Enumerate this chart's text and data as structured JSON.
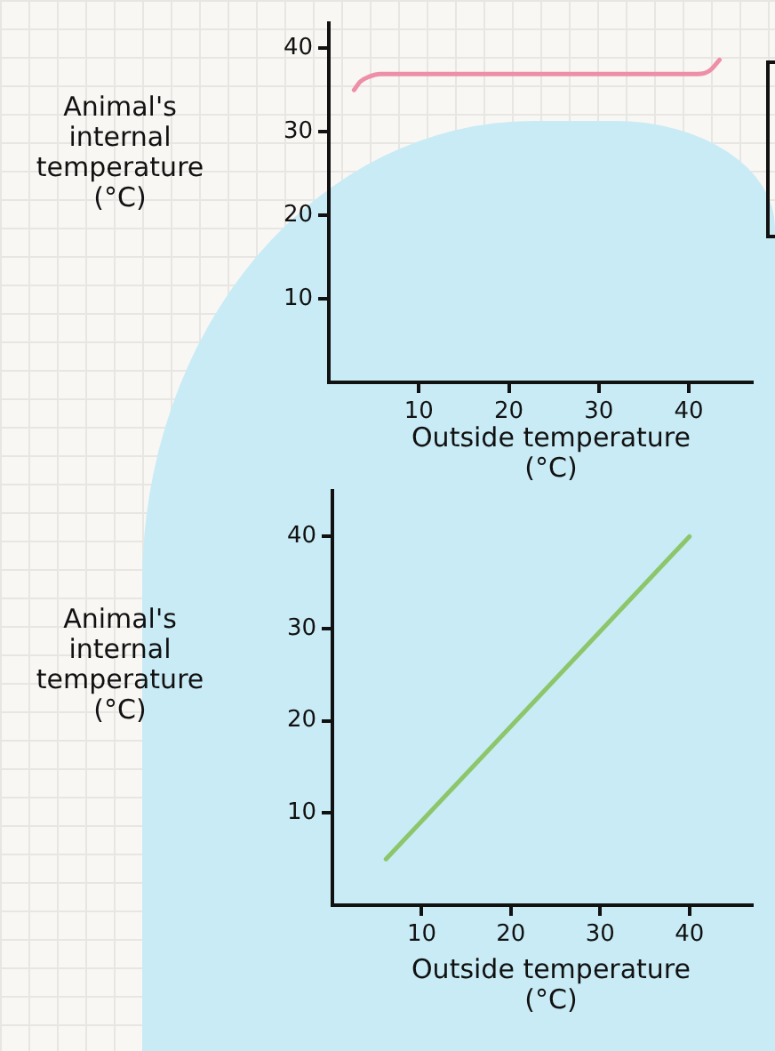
{
  "chart_data": [
    {
      "type": "line",
      "x": [
        2.8,
        3.5,
        4.5,
        5.7,
        41,
        42.3,
        43.4
      ],
      "values": [
        35,
        36,
        36.6,
        36.9,
        36.9,
        37.3,
        38.6
      ],
      "color": "#ee8fa8",
      "marker": "none",
      "xlim": [
        0,
        47
      ],
      "ylim": [
        0,
        43
      ],
      "xticks": [
        10,
        20,
        30,
        40
      ],
      "yticks": [
        10,
        20,
        30,
        40
      ],
      "xlabel": "Outside temperature (°C)",
      "ylabel": "Animal's internal temperature (°C)"
    },
    {
      "type": "line",
      "x": [
        6,
        40
      ],
      "values": [
        5,
        40
      ],
      "color": "#8dc66a",
      "marker": "none",
      "xlim": [
        0,
        47
      ],
      "ylim": [
        0,
        45
      ],
      "xticks": [
        10,
        20,
        30,
        40
      ],
      "yticks": [
        10,
        20,
        30,
        40
      ],
      "xlabel": "Outside temperature (°C)",
      "ylabel": "Animal's internal temperature (°C)"
    }
  ]
}
